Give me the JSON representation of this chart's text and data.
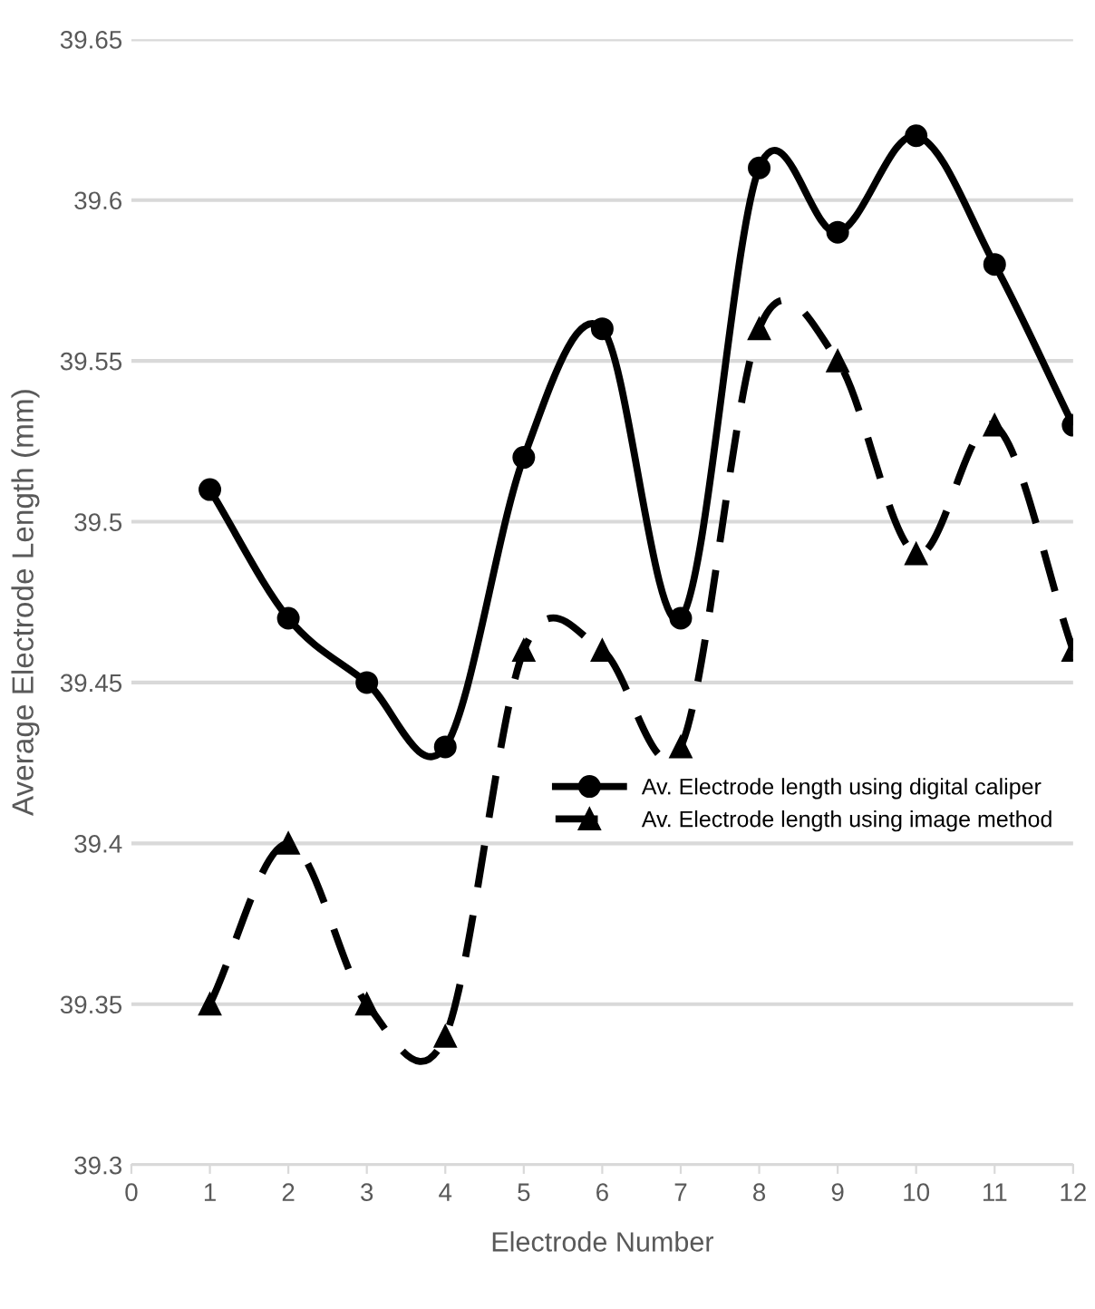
{
  "chart_data": {
    "type": "line",
    "xlabel": "Electrode Number",
    "ylabel": "Average Electrode Length (mm)",
    "x": [
      1,
      2,
      3,
      4,
      5,
      6,
      7,
      8,
      9,
      10,
      11,
      12
    ],
    "series": [
      {
        "name": "Av. Electrode length using digital caliper",
        "color": "#000000",
        "marker": "circle",
        "line_style": "solid",
        "values": [
          39.51,
          39.47,
          39.45,
          39.43,
          39.52,
          39.56,
          39.47,
          39.61,
          39.59,
          39.62,
          39.58,
          39.53
        ]
      },
      {
        "name": "Av. Electrode length using image method",
        "color": "#000000",
        "marker": "triangle",
        "line_style": "dashed",
        "values": [
          39.35,
          39.4,
          39.35,
          39.34,
          39.46,
          39.46,
          39.43,
          39.56,
          39.55,
          39.49,
          39.53,
          39.46
        ]
      }
    ],
    "xlim": [
      0,
      12
    ],
    "xticks": [
      0,
      1,
      2,
      3,
      4,
      5,
      6,
      7,
      8,
      9,
      10,
      11,
      12
    ],
    "ylim": [
      39.3,
      39.65
    ],
    "yticks": [
      39.3,
      39.35,
      39.4,
      39.45,
      39.5,
      39.55,
      39.6,
      39.65
    ],
    "grid": "y",
    "legend": "right"
  }
}
